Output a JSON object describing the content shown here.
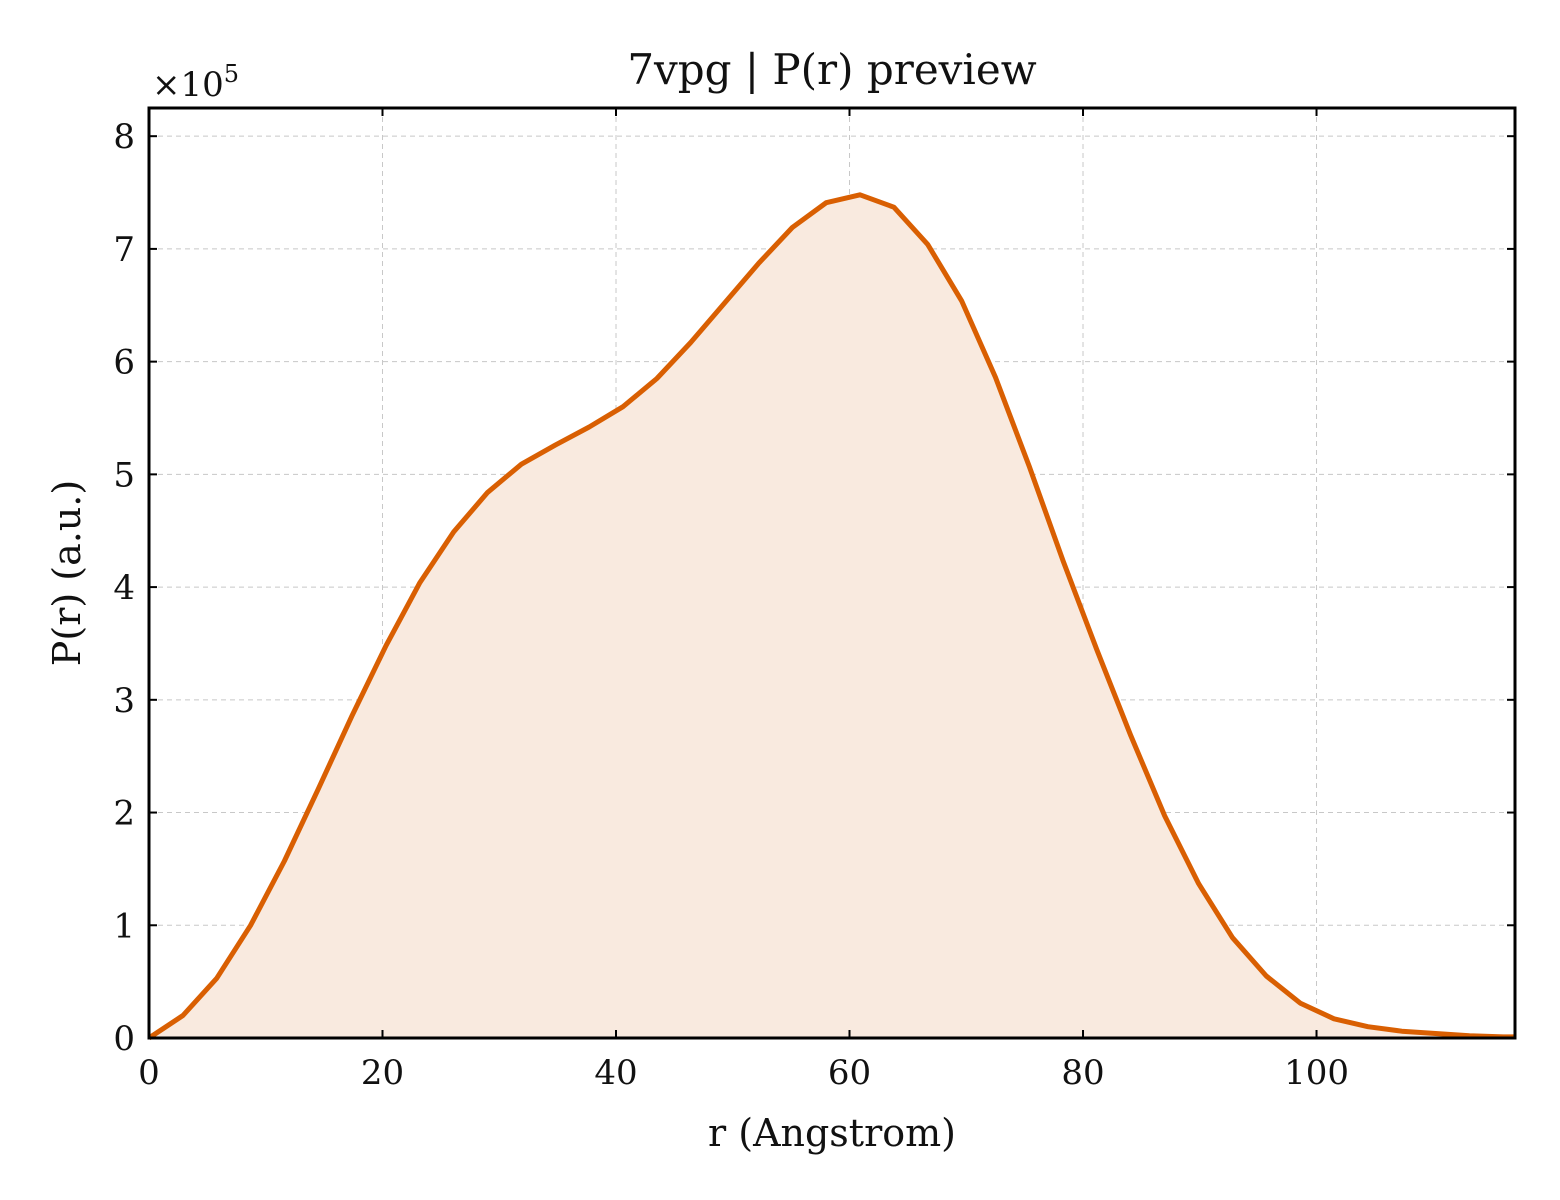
{
  "chart_data": {
    "type": "area",
    "title": "7vpg | P(r) preview",
    "xlabel": "r (Angstrom)",
    "ylabel": "P(r) (a.u.)",
    "y_multiplier_label": "×10",
    "y_multiplier_exponent": "5",
    "xlim": [
      0,
      117
    ],
    "ylim": [
      0,
      8.25
    ],
    "x_ticks": [
      0,
      20,
      40,
      60,
      80,
      100
    ],
    "y_ticks": [
      0,
      1,
      2,
      3,
      4,
      5,
      6,
      7,
      8
    ],
    "grid": true,
    "line_color": "#d95f02",
    "fill_color": "#f9eadf",
    "series": [
      {
        "x": [
          0,
          2.9,
          5.8,
          8.7,
          11.6,
          14.5,
          17.4,
          20.3,
          23.2,
          26.1,
          29.0,
          31.9,
          34.8,
          37.7,
          40.6,
          43.5,
          46.4,
          49.3,
          52.2,
          55.1,
          58.0,
          60.9,
          63.8,
          66.7,
          69.6,
          72.5,
          75.4,
          78.3,
          81.2,
          84.1,
          87.0,
          89.9,
          92.8,
          95.7,
          98.6,
          101.5,
          104.4,
          107.3,
          110.2,
          113.1,
          116.0
        ],
        "y": [
          0,
          0.2,
          0.53,
          1.0,
          1.57,
          2.21,
          2.86,
          3.48,
          4.04,
          4.49,
          4.84,
          5.09,
          5.26,
          5.42,
          5.6,
          5.85,
          6.17,
          6.52,
          6.87,
          7.19,
          7.41,
          7.48,
          7.37,
          7.04,
          6.54,
          5.86,
          5.07,
          4.23,
          3.44,
          2.68,
          1.97,
          1.37,
          0.89,
          0.55,
          0.31,
          0.17,
          0.1,
          0.06,
          0.04,
          0.02,
          0.01
        ]
      }
    ]
  }
}
